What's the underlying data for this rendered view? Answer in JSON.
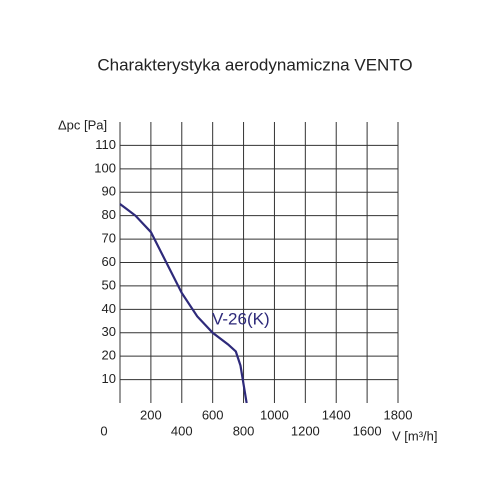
{
  "chart_data": {
    "type": "line",
    "title": "Charakterystyka aerodynamiczna VENTO",
    "y_label": "Δpc [Pa]",
    "x_label": "V [m³/h]",
    "xlim": [
      0,
      1800
    ],
    "xticks": [
      0,
      200,
      400,
      600,
      800,
      1000,
      1200,
      1400,
      1600,
      1800
    ],
    "ylim": [
      0,
      120
    ],
    "yticks": [
      10,
      20,
      30,
      40,
      50,
      60,
      70,
      80,
      90,
      100,
      110
    ],
    "grid": true,
    "series": [
      {
        "name": "V-26(K)",
        "color": "#2e2a7a",
        "x": [
          0,
          100,
          200,
          300,
          400,
          500,
          600,
          700,
          750,
          780,
          800,
          820
        ],
        "values": [
          85,
          80,
          73,
          60,
          47,
          37,
          30,
          25,
          22,
          16,
          8,
          0
        ]
      }
    ]
  }
}
